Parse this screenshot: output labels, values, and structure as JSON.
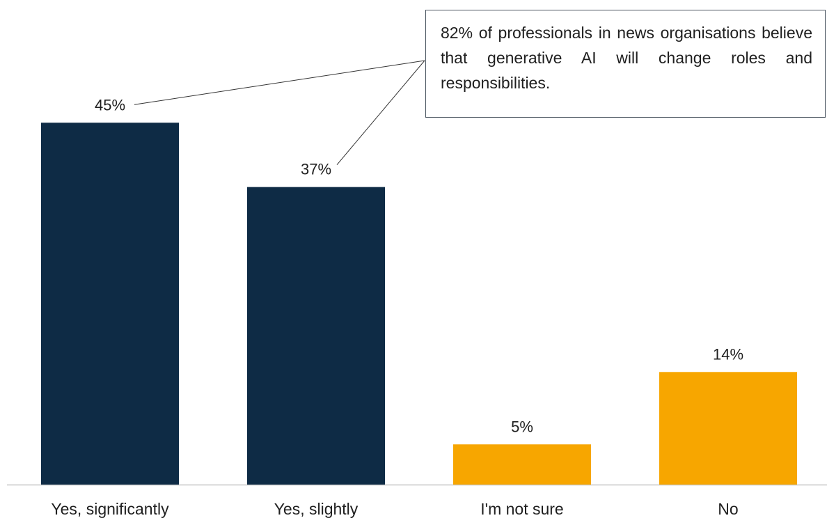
{
  "chart_data": {
    "type": "bar",
    "categories": [
      "Yes, significantly",
      "Yes, slightly",
      "I'm not sure",
      "No"
    ],
    "values": [
      45,
      37,
      5,
      14
    ],
    "data_labels": [
      "45%",
      "37%",
      "5%",
      "14%"
    ],
    "bar_colors": [
      "#0e2b45",
      "#0e2b45",
      "#f7a600",
      "#f7a600"
    ],
    "ylim": [
      0,
      50
    ],
    "grid": false,
    "legend": "none",
    "annotation": {
      "text": "82% of professionals in news organisations believe that generative AI will change roles and responsibilities.",
      "points_to": [
        "Yes, significantly",
        "Yes, slightly"
      ]
    }
  },
  "colors": {
    "yes": "#0e2b45",
    "other": "#f7a600",
    "axis": "#c8c8c8",
    "text": "#1f1f1f"
  }
}
